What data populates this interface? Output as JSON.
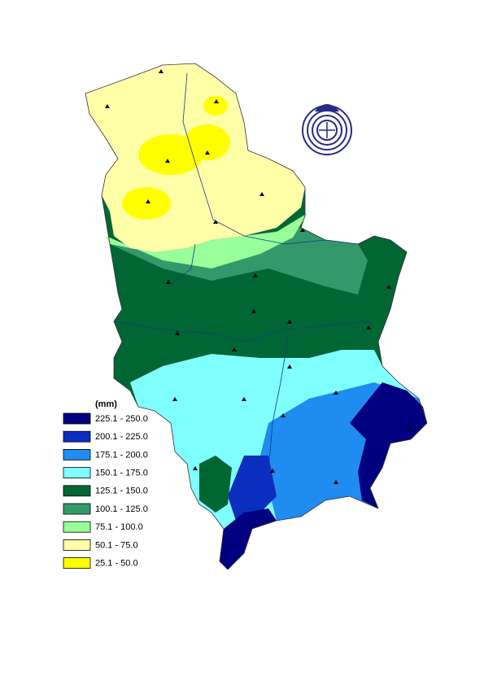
{
  "legend": {
    "unit": "(mm)",
    "items": [
      {
        "label": "225.1 - 250.0",
        "color": "#000080"
      },
      {
        "label": "200.1 - 225.0",
        "color": "#0a2fbf"
      },
      {
        "label": "175.1 - 200.0",
        "color": "#1e8cf0"
      },
      {
        "label": "150.1 - 175.0",
        "color": "#80ffff"
      },
      {
        "label": "125.1 - 150.0",
        "color": "#006633"
      },
      {
        "label": "100.1 - 125.0",
        "color": "#33996a"
      },
      {
        "label": "75.1 - 100.0",
        "color": "#99ff99"
      },
      {
        "label": "50.1 - 75.0",
        "color": "#ffffa8"
      },
      {
        "label": "25.1 - 50.0",
        "color": "#ffff00"
      }
    ]
  }
}
